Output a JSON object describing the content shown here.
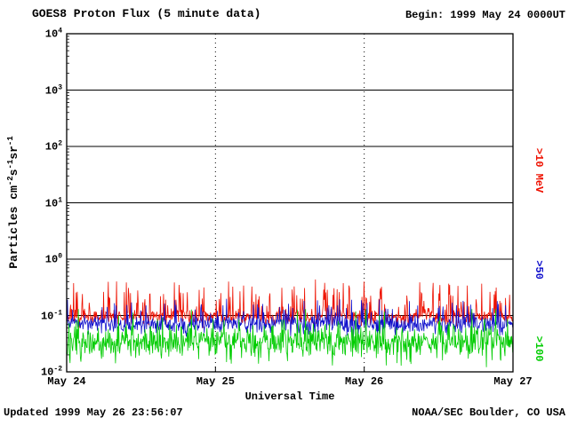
{
  "header": {
    "title": "GOES8 Proton Flux (5 minute data)",
    "begin_label": "Begin: 1999 May 24 0000UT"
  },
  "footer": {
    "updated": "Updated 1999 May 26 23:56:07",
    "source": "NOAA/SEC Boulder, CO USA"
  },
  "chart_data": {
    "type": "line",
    "title": "GOES8 Proton Flux (5 minute data)",
    "xlabel": "Universal Time",
    "ylabel_segments": [
      {
        "t": "Particles cm"
      },
      {
        "sup": "-2"
      },
      {
        "t": "s"
      },
      {
        "sup": "-1"
      },
      {
        "t": "sr"
      },
      {
        "sup": "-1"
      }
    ],
    "y_log_range": [
      -2,
      4
    ],
    "y_tick_exponents": [
      4,
      3,
      2,
      1,
      0,
      -1,
      -2
    ],
    "x_range_hours": [
      0,
      72
    ],
    "cadence_minutes": 5,
    "x_ticks": [
      {
        "hour": 0,
        "label": "May 24"
      },
      {
        "hour": 24,
        "label": "May 25"
      },
      {
        "hour": 48,
        "label": "May 26"
      },
      {
        "hour": 72,
        "label": "May 27"
      }
    ],
    "grid": {
      "horizontal_decades": [
        3,
        2,
        1,
        0,
        -1
      ],
      "vertical_hours": [
        24,
        48
      ],
      "horizontal_style": "solid",
      "vertical_style": "dotted"
    },
    "legend_position": "right-rotated",
    "series": [
      {
        "name": ">10 MeV",
        "color": "#ee1100",
        "typical_flux": 0.1,
        "observed_range": [
          0.06,
          0.5
        ],
        "log_base": -1.02,
        "log_sigma": 0.07,
        "spike_rate": 0.15,
        "spike_log_min": 0.12,
        "spike_log_max": 0.62,
        "min": 0.06,
        "max": 0.55,
        "seed": 7
      },
      {
        "name": ">50",
        "color": "#1111cc",
        "typical_flux": 0.07,
        "observed_range": [
          0.04,
          0.25
        ],
        "log_base": -1.16,
        "log_sigma": 0.08,
        "spike_rate": 0.1,
        "spike_log_min": 0.1,
        "spike_log_max": 0.48,
        "min": 0.038,
        "max": 0.25,
        "seed": 13
      },
      {
        "name": ">100",
        "color": "#00cc00",
        "typical_flux": 0.035,
        "observed_range": [
          0.01,
          0.12
        ],
        "log_base": -1.48,
        "log_sigma": 0.15,
        "spike_rate": 0.1,
        "spike_log_min": 0.1,
        "spike_log_max": 0.45,
        "min": 0.0105,
        "max": 0.13,
        "seed": 21
      }
    ]
  }
}
